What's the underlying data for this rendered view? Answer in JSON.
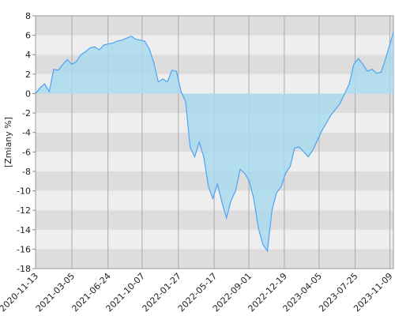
{
  "chart_data": {
    "type": "area",
    "y_label": "[Zmiany %]",
    "x": [
      "2020-11-13",
      "2020-11-27",
      "2020-12-11",
      "2020-12-25",
      "2021-01-08",
      "2021-01-22",
      "2021-02-05",
      "2021-02-19",
      "2021-03-05",
      "2021-03-19",
      "2021-04-02",
      "2021-04-16",
      "2021-04-30",
      "2021-05-14",
      "2021-05-28",
      "2021-06-11",
      "2021-06-25",
      "2021-07-09",
      "2021-07-23",
      "2021-08-06",
      "2021-08-20",
      "2021-09-03",
      "2021-09-17",
      "2021-10-01",
      "2021-10-15",
      "2021-10-29",
      "2021-11-12",
      "2021-11-26",
      "2021-12-10",
      "2021-12-24",
      "2022-01-07",
      "2022-01-21",
      "2022-02-04",
      "2022-02-18",
      "2022-03-04",
      "2022-03-18",
      "2022-04-01",
      "2022-04-15",
      "2022-04-29",
      "2022-05-13",
      "2022-05-27",
      "2022-06-10",
      "2022-06-24",
      "2022-07-08",
      "2022-07-22",
      "2022-08-05",
      "2022-08-19",
      "2022-09-02",
      "2022-09-16",
      "2022-09-30",
      "2022-10-14",
      "2022-10-28",
      "2022-11-11",
      "2022-11-25",
      "2022-12-09",
      "2022-12-23",
      "2023-01-06",
      "2023-01-20",
      "2023-02-03",
      "2023-02-17",
      "2023-03-03",
      "2023-03-17",
      "2023-03-31",
      "2023-04-14",
      "2023-04-28",
      "2023-05-12",
      "2023-05-26",
      "2023-06-09",
      "2023-06-23",
      "2023-07-07",
      "2023-07-21",
      "2023-08-04",
      "2023-08-18",
      "2023-09-01",
      "2023-09-15",
      "2023-09-29",
      "2023-10-13",
      "2023-10-27",
      "2023-11-10",
      "2023-11-20"
    ],
    "series": [
      {
        "color": "#4da3f5",
        "fill": "#a9d9ec",
        "values": [
          0,
          0.6,
          1.0,
          0.2,
          2.5,
          2.4,
          3.0,
          3.5,
          3.0,
          3.3,
          4.0,
          4.3,
          4.7,
          4.8,
          4.5,
          5.0,
          5.1,
          5.2,
          5.4,
          5.5,
          5.7,
          5.9,
          5.6,
          5.5,
          5.4,
          4.6,
          3.2,
          1.2,
          1.5,
          1.2,
          2.4,
          2.3,
          0.2,
          -0.8,
          -5.5,
          -6.5,
          -5.0,
          -6.5,
          -9.5,
          -10.8,
          -9.3,
          -11.2,
          -12.8,
          -11.0,
          -10.0,
          -7.8,
          -8.2,
          -9.0,
          -10.8,
          -13.8,
          -15.5,
          -16.2,
          -12.0,
          -10.2,
          -9.6,
          -8.2,
          -7.5,
          -5.6,
          -5.5,
          -6.0,
          -6.5,
          -5.8,
          -4.8,
          -3.8,
          -3.0,
          -2.2,
          -1.6,
          -1.0,
          0.0,
          1.0,
          3.0,
          3.6,
          3.0,
          2.3,
          2.5,
          2.1,
          2.2,
          3.6,
          5.2,
          6.3
        ]
      }
    ],
    "xlim": [
      "2020-11-13",
      "2023-11-20"
    ],
    "xticks": [
      "2020-11-13",
      "2021-03-05",
      "2021-06-24",
      "2021-10-07",
      "2022-01-27",
      "2022-05-17",
      "2022-09-01",
      "2022-12-19",
      "2023-04-05",
      "2023-07-25",
      "2023-11-09"
    ],
    "ylim": [
      -18,
      8
    ],
    "yticks": [
      -18,
      -16,
      -14,
      -12,
      -10,
      -8,
      -6,
      -4,
      -2,
      0,
      2,
      4,
      6,
      8
    ],
    "grid": true,
    "band_colors": [
      "#dddddd",
      "#eeeeee"
    ]
  }
}
